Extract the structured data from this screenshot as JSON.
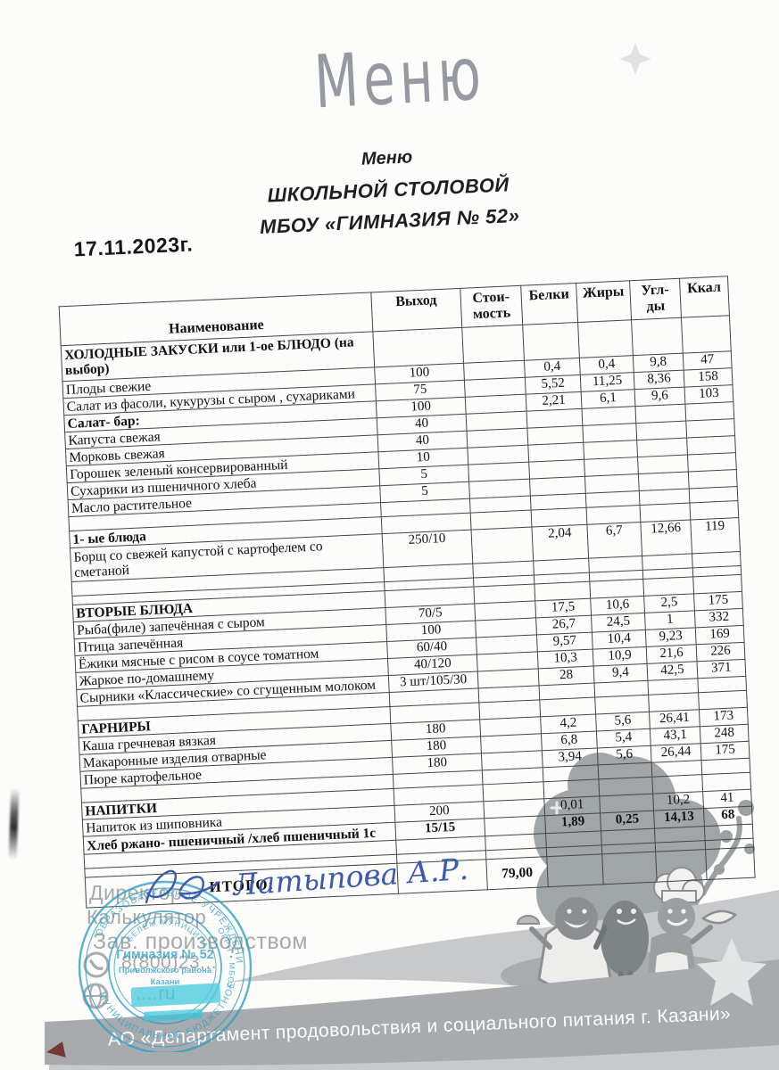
{
  "page": {
    "handwritten_title": "Меню",
    "subtitle": [
      "Меню",
      "ШКОЛЬНОЙ СТОЛОВОЙ",
      "МБОУ «ГИМНАЗИЯ № 52»"
    ],
    "date": "17.11.2023г."
  },
  "table": {
    "headers": [
      "Наименование",
      "Выход",
      "Стои-\nмость",
      "Белки",
      "Жиры",
      "Угл-\nды",
      "Ккал"
    ],
    "rows": [
      {
        "type": "section2",
        "name": "ХОЛОДНЫЕ ЗАКУСКИ или 1-ое БЛЮДО (на выбор)",
        "values": [
          "",
          "",
          "",
          "",
          "",
          ""
        ]
      },
      {
        "type": "dish",
        "name": "Плоды свежие",
        "values": [
          "100",
          "",
          "0,4",
          "0,4",
          "9,8",
          "47"
        ]
      },
      {
        "type": "dish",
        "name": "Салат из фасоли, кукурузы с сыром , сухариками",
        "values": [
          "75",
          "",
          "5,52",
          "11,25",
          "8,36",
          "158"
        ]
      },
      {
        "type": "section",
        "name": "Салат- бар:",
        "values": [
          "100",
          "",
          "2,21",
          "6,1",
          "9,6",
          "103"
        ]
      },
      {
        "type": "dish",
        "name": "Капуста свежая",
        "values": [
          "40",
          "",
          "",
          "",
          "",
          ""
        ]
      },
      {
        "type": "dish",
        "name": "Морковь свежая",
        "values": [
          "40",
          "",
          "",
          "",
          "",
          ""
        ]
      },
      {
        "type": "dish",
        "name": "Горошек зеленый консервированный",
        "values": [
          "10",
          "",
          "",
          "",
          "",
          ""
        ]
      },
      {
        "type": "dish",
        "name": "Сухарики из пшеничного хлеба",
        "values": [
          "5",
          "",
          "",
          "",
          "",
          ""
        ]
      },
      {
        "type": "dish",
        "name": "Масло растительное",
        "values": [
          "5",
          "",
          "",
          "",
          "",
          ""
        ]
      },
      {
        "type": "empty",
        "name": "",
        "values": [
          "",
          "",
          "",
          "",
          "",
          ""
        ]
      },
      {
        "type": "section",
        "name": "1-   ые блюда",
        "indent": true,
        "values": [
          "",
          "",
          "",
          "",
          "",
          ""
        ]
      },
      {
        "type": "dish2",
        "name": "Борщ со свежей капустой с картофелем со сметаной",
        "values": [
          "250/10",
          "",
          "2,04",
          "6,7",
          "12,66",
          "119"
        ]
      },
      {
        "type": "empty",
        "name": "",
        "values": [
          "",
          "",
          "",
          "",
          "",
          ""
        ]
      },
      {
        "type": "empty-sm",
        "name": "",
        "values": [
          "",
          "",
          "",
          "",
          "",
          ""
        ]
      },
      {
        "type": "section",
        "name": "ВТОРЫЕ БЛЮДА",
        "values": [
          "",
          "",
          "",
          "",
          "",
          ""
        ]
      },
      {
        "type": "dish",
        "name": "Рыба(филе) запечённая с сыром",
        "values": [
          "70/5",
          "",
          "17,5",
          "10,6",
          "2,5",
          "175"
        ]
      },
      {
        "type": "dish",
        "name": "Птица запечённая",
        "values": [
          "100",
          "",
          "26,7",
          "24,5",
          "1",
          "332"
        ]
      },
      {
        "type": "dish",
        "name": "Ёжики мясные с рисом в соусе томатном",
        "values": [
          "60/40",
          "",
          "9,57",
          "10,4",
          "9,23",
          "169"
        ]
      },
      {
        "type": "dish",
        "name": "Жаркое по-домашнему",
        "values": [
          "40/120",
          "",
          "10,3",
          "10,9",
          "21,6",
          "226"
        ]
      },
      {
        "type": "dish",
        "name": "Сырники «Классические» со сгущенным молоком",
        "values": [
          "3 шт/105/30",
          "",
          "28",
          "9,4",
          "42,5",
          "371"
        ]
      },
      {
        "type": "empty",
        "name": "",
        "values": [
          "",
          "",
          "",
          "",
          "",
          ""
        ]
      },
      {
        "type": "section",
        "name": "ГАРНИРЫ",
        "values": [
          "",
          "",
          "",
          "",
          "",
          ""
        ]
      },
      {
        "type": "dish",
        "name": "Каша гречневая вязкая",
        "values": [
          "180",
          "",
          "4,2",
          "5,6",
          "26,41",
          "173"
        ]
      },
      {
        "type": "dish",
        "name": "Макаронные изделия отварные",
        "values": [
          "180",
          "",
          "6,8",
          "5,4",
          "43,1",
          "248"
        ]
      },
      {
        "type": "dish",
        "name": "Пюре картофельное",
        "values": [
          "180",
          "",
          "3,94",
          "5,6",
          "26,44",
          "175"
        ]
      },
      {
        "type": "empty",
        "name": "",
        "values": [
          "",
          "",
          "",
          "",
          "",
          ""
        ]
      },
      {
        "type": "section",
        "name": "НАПИТКИ",
        "values": [
          "",
          "",
          "",
          "",
          "",
          ""
        ]
      },
      {
        "type": "dish",
        "name": "Напиток из шиповника",
        "values": [
          "200",
          "",
          "0,01",
          "",
          "10,2",
          "41"
        ]
      },
      {
        "type": "dish-bold",
        "name": "Хлеб ржано- пшеничный /хлеб пшеничный 1с",
        "values": [
          "15/15",
          "",
          "1,89",
          "0,25",
          "14,13",
          "68"
        ]
      },
      {
        "type": "empty",
        "name": "",
        "values": [
          "",
          "",
          "",
          "",
          "",
          ""
        ]
      },
      {
        "type": "empty-sm",
        "name": "",
        "values": [
          "",
          "",
          "",
          "",
          "",
          ""
        ]
      },
      {
        "type": "total",
        "name": "ИТОГО:",
        "values": [
          "",
          "79,00",
          "",
          "",
          "",
          ""
        ]
      }
    ]
  },
  "signoff": {
    "director_label": "Директор",
    "calculator_label": "Калькулятор",
    "production_manager_label": "Зав. производством",
    "signature_text": "Латыпова А.Р.",
    "phone_fragment": "8(800)23...",
    "website_fragment": "....ru"
  },
  "stamp": {
    "arc_top": "ОБРАЗОВАТЕЛЬНОЕ УЧРЕЖДЕНИЕ",
    "arc_bottom": "МУНИЦИПАЛЬНОЕ БЮДЖЕТНОЕ",
    "arc_inner": "БЕЛЕМ МУНИЦИПА",
    "arc_right": "ОГРН • МБОУ",
    "center_line1": "Гимназия № 52",
    "center_line2": "Приволжского района",
    "center_line3": "Казани",
    "color": "#2f9fc6"
  },
  "footer": {
    "org_text": "АО «Департамент продовольствия и социального питания г. Казани»"
  }
}
